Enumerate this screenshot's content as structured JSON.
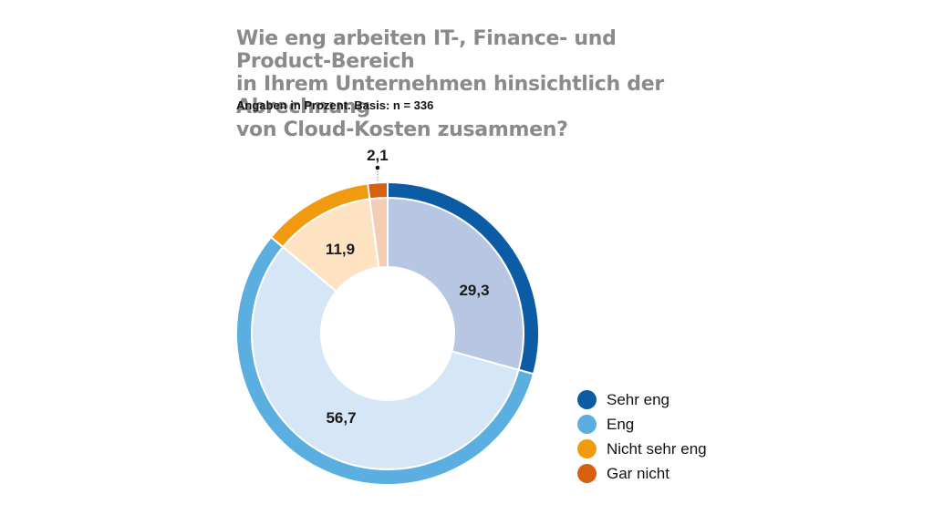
{
  "chart_data": {
    "type": "pie",
    "title": "Wie eng arbeiten IT-, Finance- und Product-Bereich in Ihrem Unternehmen hinsichtlich der Abrechnung von Cloud-Kosten zusammen?",
    "title_lines": [
      "Wie eng arbeiten IT-, Finance- und Product-Bereich",
      "in Ihrem Unternehmen hinsichtlich der Abrechnung",
      "von Cloud-Kosten zusammen?"
    ],
    "subtitle": "Angaben in Prozent. Basis: n = 336",
    "unit": "percent",
    "legend_position": "bottom-right",
    "slices": [
      {
        "name": "Sehr eng",
        "value": 29.3,
        "label": "29,3",
        "color": "#0b5ca4",
        "inner_color": "#b7c6e3"
      },
      {
        "name": "Eng",
        "value": 56.7,
        "label": "56,7",
        "color": "#5aaee0",
        "inner_color": "#d5e6f6"
      },
      {
        "name": "Nicht sehr eng",
        "value": 11.9,
        "label": "11,9",
        "color": "#f29a0f",
        "inner_color": "#fde3c2"
      },
      {
        "name": "Gar nicht",
        "value": 2.1,
        "label": "2,1",
        "color": "#d85e10",
        "inner_color": "#f5cdb4"
      }
    ]
  }
}
